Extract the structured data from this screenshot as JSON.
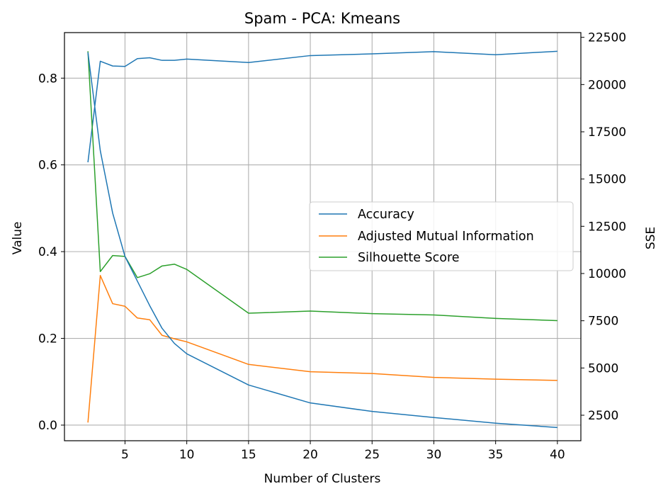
{
  "chart_data": {
    "type": "line",
    "title": "Spam - PCA: Kmeans",
    "xlabel": "Number of Clusters",
    "ylabel": "Value",
    "ylabel_right": "SSE",
    "xlim": [
      0.1,
      41.9
    ],
    "ylim": [
      -0.036,
      0.905
    ],
    "ylim_right": [
      1150,
      22750
    ],
    "x_ticks": [
      5,
      10,
      15,
      20,
      25,
      30,
      35,
      40
    ],
    "y_ticks": [
      0.0,
      0.2,
      0.4,
      0.6,
      0.8
    ],
    "y_tick_labels": [
      "0.0",
      "0.2",
      "0.4",
      "0.6",
      "0.8"
    ],
    "y_ticks_right": [
      2500,
      5000,
      7500,
      10000,
      12500,
      15000,
      17500,
      20000,
      22500
    ],
    "grid": true,
    "legend_position": "center-right",
    "x": [
      2,
      3,
      4,
      5,
      6,
      7,
      8,
      9,
      10,
      15,
      20,
      25,
      30,
      35,
      40
    ],
    "series": [
      {
        "name": "Accuracy",
        "axis": "left",
        "color": "#1f77b4",
        "values": [
          0.606,
          0.839,
          0.828,
          0.827,
          0.845,
          0.847,
          0.841,
          0.841,
          0.844,
          0.836,
          0.852,
          0.856,
          0.861,
          0.854,
          0.862
        ]
      },
      {
        "name": "Adjusted Mutual Information",
        "axis": "left",
        "color": "#ff7f0e",
        "values": [
          0.006,
          0.345,
          0.28,
          0.274,
          0.247,
          0.243,
          0.207,
          0.199,
          0.192,
          0.14,
          0.123,
          0.119,
          0.11,
          0.106,
          0.103
        ]
      },
      {
        "name": "Silhouette Score",
        "axis": "left",
        "color": "#2ca02c",
        "values": [
          0.862,
          0.354,
          0.391,
          0.389,
          0.34,
          0.349,
          0.367,
          0.371,
          0.359,
          0.258,
          0.263,
          0.257,
          0.254,
          0.246,
          0.241
        ]
      },
      {
        "name": "",
        "axis": "right",
        "color": "#1f77b4",
        "values": [
          21700,
          16500,
          13200,
          10900,
          9600,
          8300,
          7100,
          6300,
          5750,
          4100,
          3150,
          2700,
          2380,
          2080,
          1850
        ]
      }
    ]
  }
}
